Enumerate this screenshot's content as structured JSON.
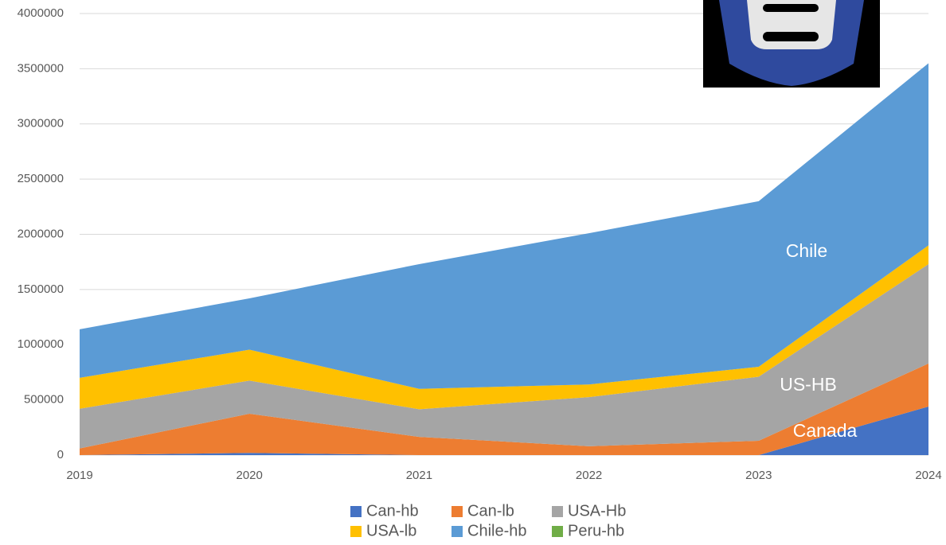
{
  "chart_data": {
    "type": "area",
    "categories": [
      "2019",
      "2020",
      "2021",
      "2022",
      "2023",
      "2024"
    ],
    "series": [
      {
        "name": "Can-hb",
        "color": "#4472c4",
        "values": [
          0,
          20000,
          0,
          0,
          0,
          440000
        ]
      },
      {
        "name": "Can-lb",
        "color": "#ed7d31",
        "values": [
          60000,
          355000,
          165000,
          80000,
          130000,
          390000
        ]
      },
      {
        "name": "USA-Hb",
        "color": "#a5a5a5",
        "values": [
          360000,
          300000,
          250000,
          445000,
          580000,
          900000
        ]
      },
      {
        "name": "USA-lb",
        "color": "#ffc000",
        "values": [
          280000,
          280000,
          185000,
          115000,
          90000,
          170000
        ]
      },
      {
        "name": "Chile-hb",
        "color": "#5b9bd5",
        "values": [
          440000,
          465000,
          1130000,
          1370000,
          1500000,
          1650000
        ]
      },
      {
        "name": "Peru-hb",
        "color": "#70ad47",
        "values": [
          0,
          0,
          0,
          0,
          0,
          0
        ]
      }
    ],
    "annotations": [
      "Chile",
      "US-HB",
      "Canada"
    ],
    "stacked": true,
    "ylim": [
      0,
      4000000
    ],
    "yticks": [
      0,
      500000,
      1000000,
      1500000,
      2000000,
      2500000,
      3000000,
      3500000,
      4000000
    ],
    "grid": true
  }
}
